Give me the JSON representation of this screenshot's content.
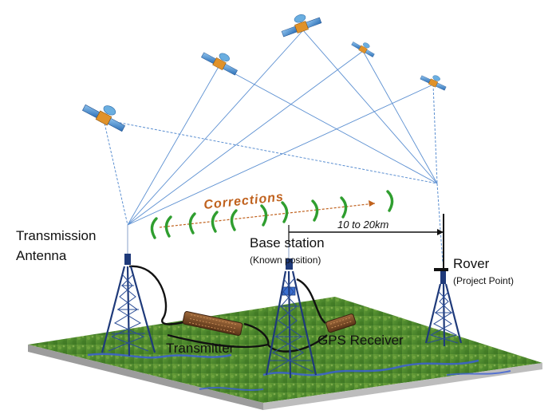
{
  "labels": {
    "corrections": "Corrections",
    "distance": "10 to 20km",
    "transmission_antenna_line1": "Transmission",
    "transmission_antenna_line2": "Antenna",
    "base_station": "Base station",
    "base_station_note": "(Known position)",
    "rover": "Rover",
    "rover_note": "(Project  Point)",
    "transmitter": "Transmitter",
    "gps_receiver": "GPS Receiver"
  },
  "colors": {
    "signal_lines": "#5b8fd1",
    "waves": "#2f9e2f",
    "corrections_text": "#c0621e",
    "tower": "#1f3a7a",
    "ground": "#4f8a2e",
    "device": "#7a4a2a"
  },
  "icons": [
    "satellite-icon",
    "tower-icon",
    "radio-wave-icon",
    "device-icon"
  ]
}
